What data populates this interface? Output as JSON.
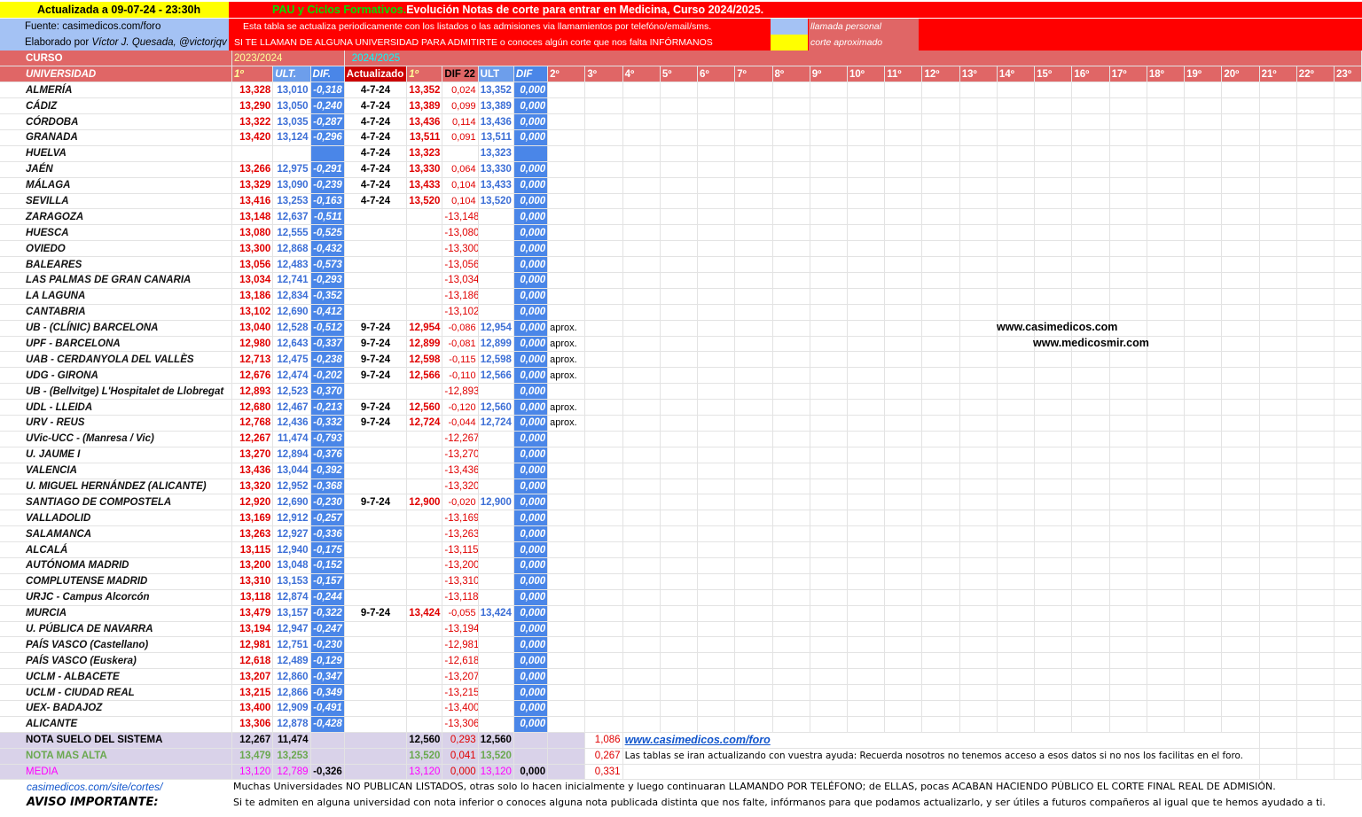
{
  "header": {
    "updated": "Actualizada a 09-07-24 - 23:30h",
    "title_green": "PAU y Ciclos Formativos.",
    "title_rest": "Evolución Notas de corte para entrar en Medicina, Curso 2024/2025.",
    "source": "Fuente: casimedicos.com/foro",
    "author_prefix": "Elaborado por",
    "author": "Víctor J. Quesada, @victorjqv",
    "info1": "Esta tabla se actualiza periodicamente con los listados o las admisiones via llamamientos por telefóno/email/sms.",
    "info2": "SI TE LLAMAN DE ALGUNA UNIVERSIDAD PARA ADMITIRTE o conoces algún corte que nos falta INFÓRMANOS",
    "legend_call": "llamada personal",
    "legend_approx": "corte aproximado",
    "colors": {
      "red": "#ff0000",
      "blue_legend": "#a4c2f4",
      "yellow": "#ffff00",
      "salmon": "#e06666"
    }
  },
  "course_row": {
    "curso": "CURSO",
    "year_prev": "2023/2024",
    "year_cur": "2024/2025"
  },
  "columns": {
    "universidad": "UNIVERSIDAD",
    "first": "1º",
    "ult": "ULT.",
    "dif": "DIF.",
    "actualizado": "Actualizado",
    "first2": "1º",
    "dif22": "DIF 22",
    "ult2": "ULT",
    "dif2": "DIF",
    "rounds": [
      "2º",
      "3º",
      "4º",
      "5º",
      "6º",
      "7º",
      "8º",
      "9º",
      "10º",
      "11º",
      "12º",
      "13º",
      "14º",
      "15º",
      "16º",
      "17º",
      "18º",
      "19º",
      "20º",
      "21º",
      "22º",
      "23º"
    ]
  },
  "rows": [
    {
      "u": "ALMERÍA",
      "p1": "13,328",
      "pu": "13,010",
      "pd": "-0,318",
      "up": "4-7-24",
      "c1": "13,352",
      "d22": "0,024",
      "cu": "13,352",
      "cd": "0,000",
      "n": ""
    },
    {
      "u": "CÁDIZ",
      "p1": "13,290",
      "pu": "13,050",
      "pd": "-0,240",
      "up": "4-7-24",
      "c1": "13,389",
      "d22": "0,099",
      "cu": "13,389",
      "cd": "0,000",
      "n": ""
    },
    {
      "u": "CÓRDOBA",
      "p1": "13,322",
      "pu": "13,035",
      "pd": "-0,287",
      "up": "4-7-24",
      "c1": "13,436",
      "d22": "0,114",
      "cu": "13,436",
      "cd": "0,000",
      "n": ""
    },
    {
      "u": "GRANADA",
      "p1": "13,420",
      "pu": "13,124",
      "pd": "-0,296",
      "up": "4-7-24",
      "c1": "13,511",
      "d22": "0,091",
      "cu": "13,511",
      "cd": "0,000",
      "n": ""
    },
    {
      "u": "HUELVA",
      "p1": "",
      "pu": "",
      "pd": "",
      "up": "4-7-24",
      "c1": "13,323",
      "d22": "",
      "cu": "13,323",
      "cd": "",
      "n": ""
    },
    {
      "u": "JAÉN",
      "p1": "13,266",
      "pu": "12,975",
      "pd": "-0,291",
      "up": "4-7-24",
      "c1": "13,330",
      "d22": "0,064",
      "cu": "13,330",
      "cd": "0,000",
      "n": ""
    },
    {
      "u": "MÁLAGA",
      "p1": "13,329",
      "pu": "13,090",
      "pd": "-0,239",
      "up": "4-7-24",
      "c1": "13,433",
      "d22": "0,104",
      "cu": "13,433",
      "cd": "0,000",
      "n": ""
    },
    {
      "u": "SEVILLA",
      "p1": "13,416",
      "pu": "13,253",
      "pd": "-0,163",
      "up": "4-7-24",
      "c1": "13,520",
      "d22": "0,104",
      "cu": "13,520",
      "cd": "0,000",
      "n": ""
    },
    {
      "u": "ZARAGOZA",
      "p1": "13,148",
      "pu": "12,637",
      "pd": "-0,511",
      "up": "",
      "c1": "",
      "d22": "-13,148",
      "cu": "",
      "cd": "0,000",
      "n": ""
    },
    {
      "u": "HUESCA",
      "p1": "13,080",
      "pu": "12,555",
      "pd": "-0,525",
      "up": "",
      "c1": "",
      "d22": "-13,080",
      "cu": "",
      "cd": "0,000",
      "n": ""
    },
    {
      "u": "OVIEDO",
      "p1": "13,300",
      "pu": "12,868",
      "pd": "-0,432",
      "up": "",
      "c1": "",
      "d22": "-13,300",
      "cu": "",
      "cd": "0,000",
      "n": ""
    },
    {
      "u": "BALEARES",
      "p1": "13,056",
      "pu": "12,483",
      "pd": "-0,573",
      "up": "",
      "c1": "",
      "d22": "-13,056",
      "cu": "",
      "cd": "0,000",
      "n": ""
    },
    {
      "u": "LAS PALMAS DE GRAN CANARIA",
      "p1": "13,034",
      "pu": "12,741",
      "pd": "-0,293",
      "up": "",
      "c1": "",
      "d22": "-13,034",
      "cu": "",
      "cd": "0,000",
      "n": ""
    },
    {
      "u": "LA LAGUNA",
      "p1": "13,186",
      "pu": "12,834",
      "pd": "-0,352",
      "up": "",
      "c1": "",
      "d22": "-13,186",
      "cu": "",
      "cd": "0,000",
      "n": ""
    },
    {
      "u": "CANTABRIA",
      "p1": "13,102",
      "pu": "12,690",
      "pd": "-0,412",
      "up": "",
      "c1": "",
      "d22": "-13,102",
      "cu": "",
      "cd": "0,000",
      "n": ""
    },
    {
      "u": "UB - (CLÍNIC) BARCELONA",
      "p1": "13,040",
      "pu": "12,528",
      "pd": "-0,512",
      "up": "9-7-24",
      "c1": "12,954",
      "d22": "-0,086",
      "cu": "12,954",
      "cd": "0,000",
      "n": "aprox."
    },
    {
      "u": "UPF - BARCELONA",
      "p1": "12,980",
      "pu": "12,643",
      "pd": "-0,337",
      "up": "9-7-24",
      "c1": "12,899",
      "d22": "-0,081",
      "cu": "12,899",
      "cd": "0,000",
      "n": "aprox."
    },
    {
      "u": "UAB - CERDANYOLA DEL VALLÈS",
      "p1": "12,713",
      "pu": "12,475",
      "pd": "-0,238",
      "up": "9-7-24",
      "c1": "12,598",
      "d22": "-0,115",
      "cu": "12,598",
      "cd": "0,000",
      "n": "aprox."
    },
    {
      "u": "UDG - GIRONA",
      "p1": "12,676",
      "pu": "12,474",
      "pd": "-0,202",
      "up": "9-7-24",
      "c1": "12,566",
      "d22": "-0,110",
      "cu": "12,566",
      "cd": "0,000",
      "n": "aprox."
    },
    {
      "u": "UB - (Bellvitge) L'Hospitalet de Llobregat",
      "p1": "12,893",
      "pu": "12,523",
      "pd": "-0,370",
      "up": "",
      "c1": "",
      "d22": "-12,893",
      "cu": "",
      "cd": "0,000",
      "n": ""
    },
    {
      "u": "UDL - LLEIDA",
      "p1": "12,680",
      "pu": "12,467",
      "pd": "-0,213",
      "up": "9-7-24",
      "c1": "12,560",
      "d22": "-0,120",
      "cu": "12,560",
      "cd": "0,000",
      "n": "aprox."
    },
    {
      "u": "URV - REUS",
      "p1": "12,768",
      "pu": "12,436",
      "pd": "-0,332",
      "up": "9-7-24",
      "c1": "12,724",
      "d22": "-0,044",
      "cu": "12,724",
      "cd": "0,000",
      "n": "aprox."
    },
    {
      "u": "UVic-UCC - (Manresa / Vic)",
      "p1": "12,267",
      "pu": "11,474",
      "pd": "-0,793",
      "up": "",
      "c1": "",
      "d22": "-12,267",
      "cu": "",
      "cd": "0,000",
      "n": ""
    },
    {
      "u": "U. JAUME I",
      "p1": "13,270",
      "pu": "12,894",
      "pd": "-0,376",
      "up": "",
      "c1": "",
      "d22": "-13,270",
      "cu": "",
      "cd": "0,000",
      "n": ""
    },
    {
      "u": "VALENCIA",
      "p1": "13,436",
      "pu": "13,044",
      "pd": "-0,392",
      "up": "",
      "c1": "",
      "d22": "-13,436",
      "cu": "",
      "cd": "0,000",
      "n": ""
    },
    {
      "u": "U. MIGUEL HERNÁNDEZ (ALICANTE)",
      "p1": "13,320",
      "pu": "12,952",
      "pd": "-0,368",
      "up": "",
      "c1": "",
      "d22": "-13,320",
      "cu": "",
      "cd": "0,000",
      "n": ""
    },
    {
      "u": "SANTIAGO DE COMPOSTELA",
      "p1": "12,920",
      "pu": "12,690",
      "pd": "-0,230",
      "up": "9-7-24",
      "c1": "12,900",
      "d22": "-0,020",
      "cu": "12,900",
      "cd": "0,000",
      "n": ""
    },
    {
      "u": "VALLADOLID",
      "p1": "13,169",
      "pu": "12,912",
      "pd": "-0,257",
      "up": "",
      "c1": "",
      "d22": "-13,169",
      "cu": "",
      "cd": "0,000",
      "n": ""
    },
    {
      "u": "SALAMANCA",
      "p1": "13,263",
      "pu": "12,927",
      "pd": "-0,336",
      "up": "",
      "c1": "",
      "d22": "-13,263",
      "cu": "",
      "cd": "0,000",
      "n": ""
    },
    {
      "u": "ALCALÁ",
      "p1": "13,115",
      "pu": "12,940",
      "pd": "-0,175",
      "up": "",
      "c1": "",
      "d22": "-13,115",
      "cu": "",
      "cd": "0,000",
      "n": ""
    },
    {
      "u": "AUTÓNOMA MADRID",
      "p1": "13,200",
      "pu": "13,048",
      "pd": "-0,152",
      "up": "",
      "c1": "",
      "d22": "-13,200",
      "cu": "",
      "cd": "0,000",
      "n": ""
    },
    {
      "u": "COMPLUTENSE MADRID",
      "p1": "13,310",
      "pu": "13,153",
      "pd": "-0,157",
      "up": "",
      "c1": "",
      "d22": "-13,310",
      "cu": "",
      "cd": "0,000",
      "n": ""
    },
    {
      "u": "URJC - Campus Alcorcón",
      "p1": "13,118",
      "pu": "12,874",
      "pd": "-0,244",
      "up": "",
      "c1": "",
      "d22": "-13,118",
      "cu": "",
      "cd": "0,000",
      "n": ""
    },
    {
      "u": "MURCIA",
      "p1": "13,479",
      "pu": "13,157",
      "pd": "-0,322",
      "up": "9-7-24",
      "c1": "13,424",
      "d22": "-0,055",
      "cu": "13,424",
      "cd": "0,000",
      "n": ""
    },
    {
      "u": "U. PÚBLICA DE NAVARRA",
      "p1": "13,194",
      "pu": "12,947",
      "pd": "-0,247",
      "up": "",
      "c1": "",
      "d22": "-13,194",
      "cu": "",
      "cd": "0,000",
      "n": ""
    },
    {
      "u": "PAÍS VASCO (Castellano)",
      "p1": "12,981",
      "pu": "12,751",
      "pd": "-0,230",
      "up": "",
      "c1": "",
      "d22": "-12,981",
      "cu": "",
      "cd": "0,000",
      "n": ""
    },
    {
      "u": "PAÍS VASCO (Euskera)",
      "p1": "12,618",
      "pu": "12,489",
      "pd": "-0,129",
      "up": "",
      "c1": "",
      "d22": "-12,618",
      "cu": "",
      "cd": "0,000",
      "n": ""
    },
    {
      "u": "UCLM - ALBACETE",
      "p1": "13,207",
      "pu": "12,860",
      "pd": "-0,347",
      "up": "",
      "c1": "",
      "d22": "-13,207",
      "cu": "",
      "cd": "0,000",
      "n": ""
    },
    {
      "u": "UCLM - CIUDAD REAL",
      "p1": "13,215",
      "pu": "12,866",
      "pd": "-0,349",
      "up": "",
      "c1": "",
      "d22": "-13,215",
      "cu": "",
      "cd": "0,000",
      "n": ""
    },
    {
      "u": "UEX- BADAJOZ",
      "p1": "13,400",
      "pu": "12,909",
      "pd": "-0,491",
      "up": "",
      "c1": "",
      "d22": "-13,400",
      "cu": "",
      "cd": "0,000",
      "n": ""
    },
    {
      "u": "ALICANTE",
      "p1": "13,306",
      "pu": "12,878",
      "pd": "-0,428",
      "up": "",
      "c1": "",
      "d22": "-13,306",
      "cu": "",
      "cd": "0,000",
      "n": ""
    }
  ],
  "summary": {
    "suelo": {
      "label": "NOTA SUELO DEL SISTEMA",
      "p1": "12,267",
      "pu": "11,474",
      "c1": "12,560",
      "d22": "0,293",
      "cu": "12,560",
      "extra": "1,086",
      "link": "www.casimedicos.com/foro"
    },
    "alta": {
      "label": "NOTA MAS ALTA",
      "p1": "13,479",
      "pu": "13,253",
      "c1": "13,520",
      "d22": "0,041",
      "cu": "13,520",
      "extra": "0,267",
      "note": "Las tablas se iran actualizando con vuestra ayuda: Recuerda nosotros no tenemos acceso a esos datos si no nos los facilitas en el foro."
    },
    "media": {
      "label": "MEDIA",
      "p1": "13,120",
      "pu": "12,789",
      "pd": "-0,326",
      "c1": "13,120",
      "d22": "0,000",
      "cu": "13,120",
      "cd": "0,000",
      "extra": "0,331"
    }
  },
  "websites": {
    "w1": "www.casimedicos.com",
    "w2": "www.medicosmir.com"
  },
  "footer": {
    "link": "casimedicos.com/site/cortes/",
    "line1": "Muchas Universidades NO PUBLICAN LISTADOS, otras solo lo hacen inicialmente y luego continuaran LLAMANDO POR TELÉFONO; de ELLAS, pocas ACABAN HACIENDO PÚBLICO EL CORTE FINAL REAL DE ADMISIÓN.",
    "aviso": "AVISO IMPORTANTE:",
    "line2": "Si te admiten en alguna universidad con nota inferior o conoces alguna nota publicada distinta que nos falte, infórmanos para que podamos actualizarlo, y ser útiles a futuros compañeros al igual que te hemos ayudado a ti."
  }
}
